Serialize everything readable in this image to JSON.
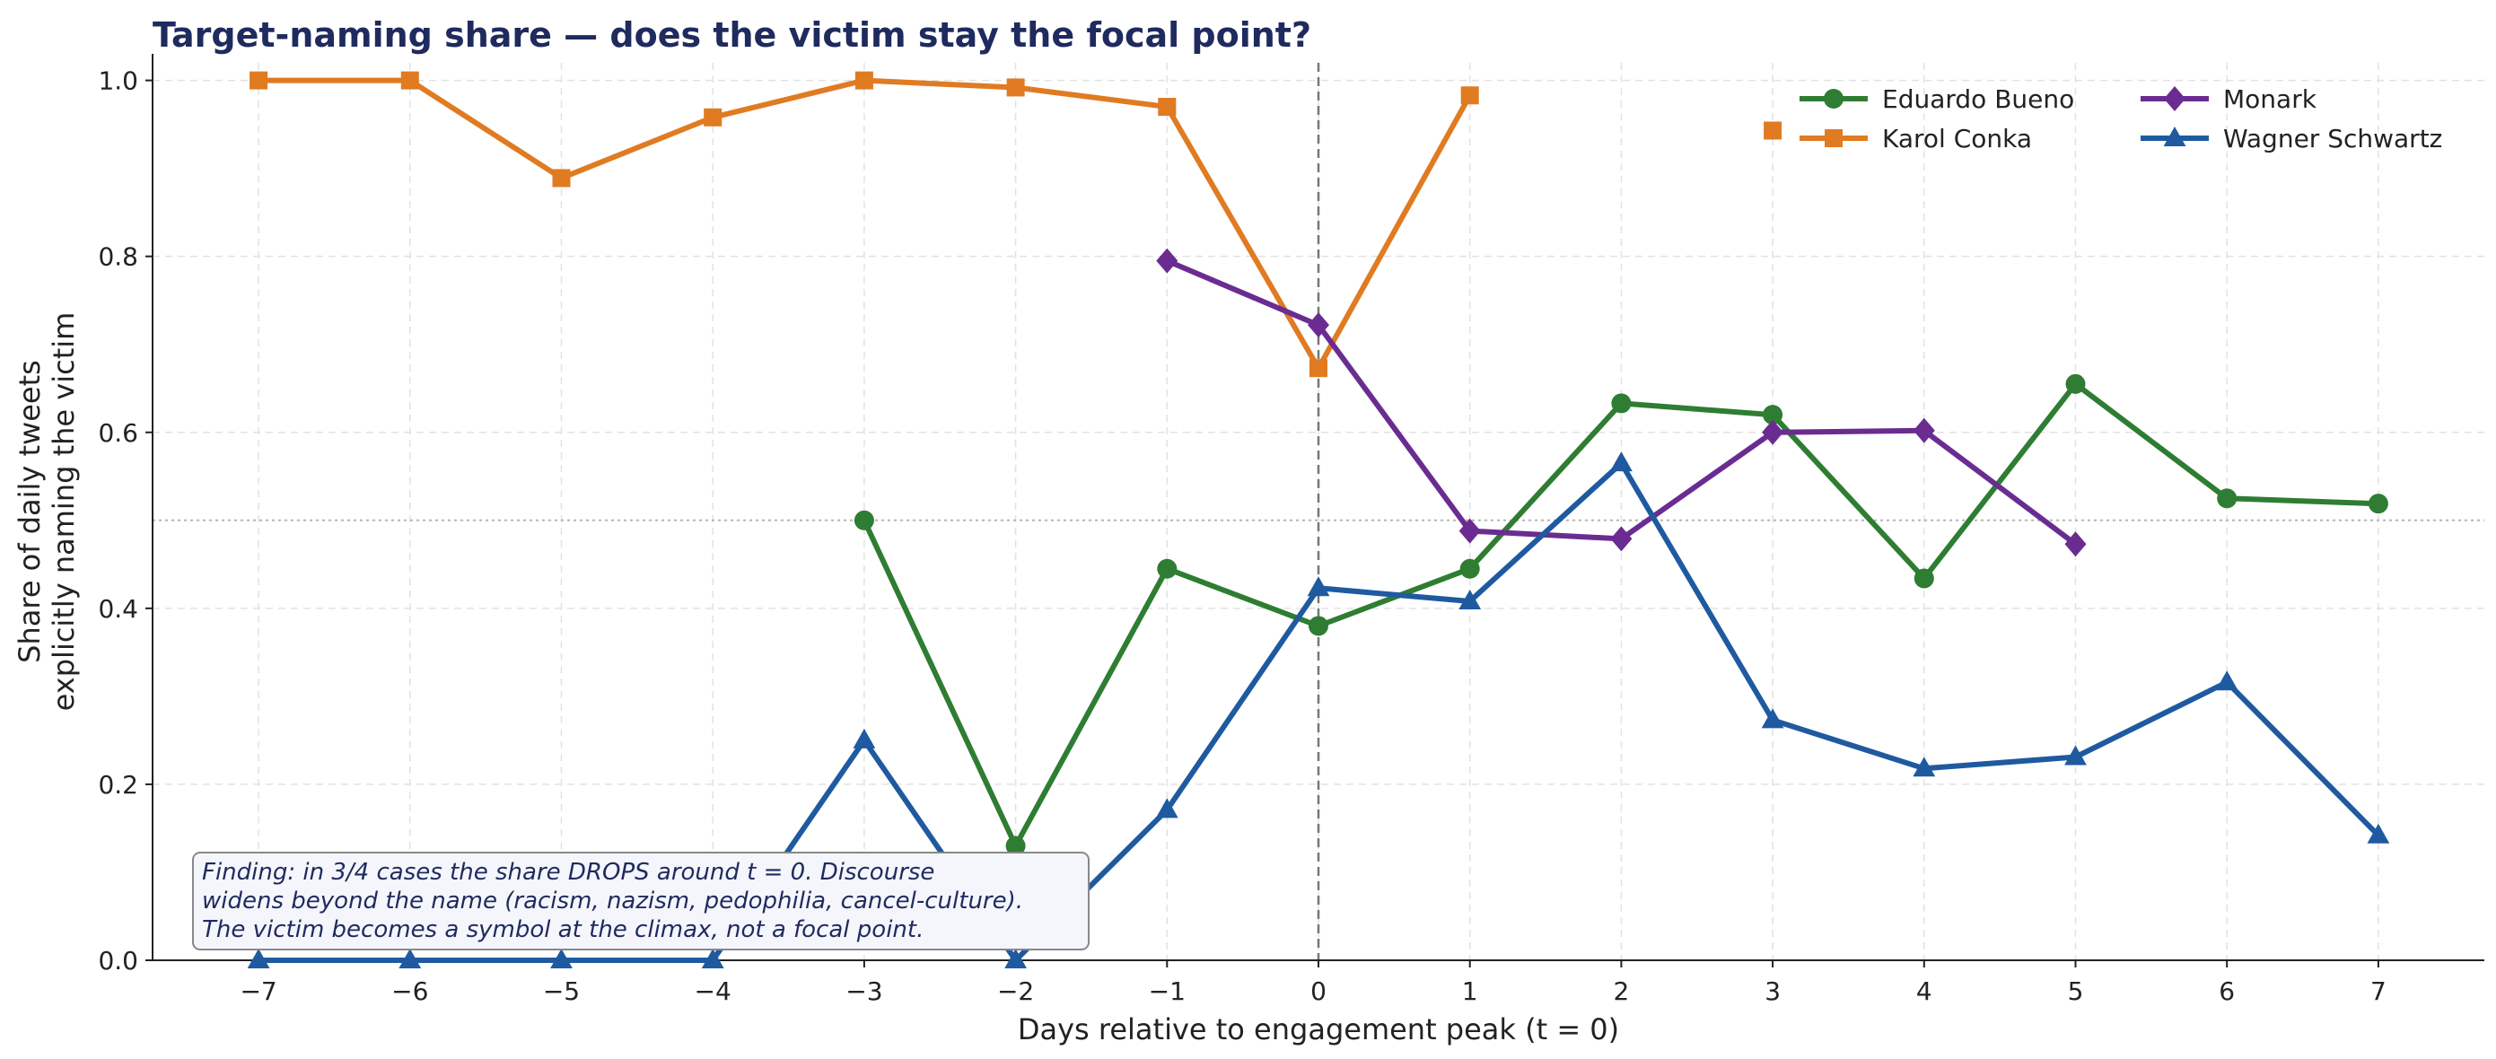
{
  "chart_data": {
    "type": "line",
    "title": "Target-naming share — does the victim stay the focal point?",
    "xlabel": "Days relative to engagement peak (t = 0)",
    "ylabel": [
      "Share of daily tweets",
      "explicitly naming the victim"
    ],
    "xlim": [
      -7.7,
      7.7
    ],
    "ylim": [
      0,
      1.02
    ],
    "xticks": [
      -7,
      -6,
      -5,
      -4,
      -3,
      -2,
      -1,
      0,
      1,
      2,
      3,
      4,
      5,
      6,
      7
    ],
    "xtick_labels": [
      "−7",
      "−6",
      "−5",
      "−4",
      "−3",
      "−2",
      "−1",
      "0",
      "1",
      "2",
      "3",
      "4",
      "5",
      "6",
      "7"
    ],
    "yticks": [
      0,
      0.2,
      0.4,
      0.6,
      0.8,
      1.0
    ],
    "ytick_labels": [
      "0.0",
      "0.2",
      "0.4",
      "0.6",
      "0.8",
      "1.0"
    ],
    "grid": true,
    "reference_lines": {
      "vertical_x": 0,
      "horizontal_y": 0.5
    },
    "legend_position": "top-right",
    "series": [
      {
        "name": "Eduardo Bueno",
        "color": "#2e7d32",
        "marker": "circle",
        "points": [
          [
            -3,
            0.5
          ],
          [
            -2,
            0.13
          ],
          [
            -1,
            0.445
          ],
          [
            0,
            0.38
          ],
          [
            1,
            0.445
          ],
          [
            2,
            0.633
          ],
          [
            3,
            0.62
          ],
          [
            4,
            0.434
          ],
          [
            5,
            0.655
          ],
          [
            6,
            0.525
          ],
          [
            7,
            0.519
          ]
        ]
      },
      {
        "name": "Karol Conka",
        "color": "#e07b22",
        "marker": "square",
        "points": [
          [
            -7,
            1.0
          ],
          [
            -6,
            1.0
          ],
          [
            -5,
            0.889
          ],
          [
            -4,
            0.958
          ],
          [
            -3,
            1.0
          ],
          [
            -2,
            0.992
          ],
          [
            -1,
            0.97
          ],
          [
            0,
            0.673
          ],
          [
            1,
            0.983
          ]
        ],
        "extra_points": [
          [
            3,
            0.943
          ]
        ]
      },
      {
        "name": "Monark",
        "color": "#6a2c91",
        "marker": "diamond",
        "points": [
          [
            -1,
            0.795
          ],
          [
            0,
            0.722
          ],
          [
            1,
            0.488
          ],
          [
            2,
            0.479
          ],
          [
            3,
            0.6
          ],
          [
            4,
            0.602
          ],
          [
            5,
            0.473
          ]
        ]
      },
      {
        "name": "Wagner Schwartz",
        "color": "#1f5aa0",
        "marker": "triangle",
        "points": [
          [
            -7,
            0.0
          ],
          [
            -6,
            0.0
          ],
          [
            -5,
            0.0
          ],
          [
            -4,
            0.0
          ],
          [
            -3,
            0.25
          ],
          [
            -2,
            0.0
          ],
          [
            -1,
            0.171
          ],
          [
            0,
            0.423
          ],
          [
            1,
            0.408
          ],
          [
            2,
            0.565
          ],
          [
            3,
            0.273
          ],
          [
            4,
            0.218
          ],
          [
            5,
            0.231
          ],
          [
            6,
            0.316
          ],
          [
            7,
            0.142
          ]
        ]
      }
    ],
    "annotation": [
      "Finding: in 3/4 cases the share DROPS around t = 0.  Discourse",
      "widens beyond the name (racism, nazism, pedophilia, cancel-culture).",
      "The victim becomes a symbol at the climax, not a focal point."
    ]
  }
}
